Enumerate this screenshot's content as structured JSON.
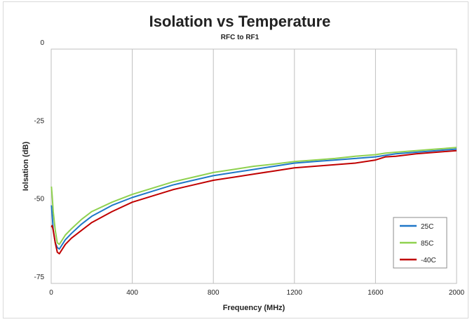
{
  "chart_data": {
    "type": "line",
    "title": "Isolation vs Temperature",
    "subtitle": "RFC to RF1",
    "xlabel": "Frequency (MHz)",
    "ylabel": "Iolsation (dB)",
    "xlim": [
      0,
      2000
    ],
    "ylim": [
      -75,
      0
    ],
    "xticks": [
      0,
      400,
      800,
      1200,
      1600,
      2000
    ],
    "yticks": [
      0,
      -25,
      -50,
      -75
    ],
    "grid": "vertical",
    "legend_position": "bottom-right",
    "series": [
      {
        "name": "25C",
        "color": "#1f77c8",
        "x": [
          1,
          5,
          10,
          20,
          30,
          40,
          50,
          70,
          100,
          150,
          200,
          300,
          400,
          500,
          600,
          700,
          800,
          900,
          1000,
          1100,
          1200,
          1300,
          1400,
          1500,
          1600,
          1650,
          1700,
          1800,
          1900,
          2000
        ],
        "y": [
          -50,
          -53,
          -58,
          -62,
          -63.5,
          -64,
          -63,
          -61,
          -59,
          -56,
          -53.5,
          -50,
          -47.5,
          -45.5,
          -43.5,
          -42,
          -40.5,
          -39.5,
          -38.5,
          -37.5,
          -36.5,
          -36,
          -35.5,
          -35,
          -34.5,
          -34,
          -33.5,
          -33,
          -32.5,
          -32
        ]
      },
      {
        "name": "85C",
        "color": "#8fd14f",
        "x": [
          1,
          5,
          10,
          20,
          30,
          40,
          50,
          70,
          100,
          150,
          200,
          300,
          400,
          500,
          600,
          700,
          800,
          900,
          1000,
          1100,
          1200,
          1300,
          1400,
          1500,
          1600,
          1650,
          1700,
          1800,
          1900,
          2000
        ],
        "y": [
          -44,
          -47,
          -52,
          -58,
          -62,
          -62.5,
          -61.5,
          -59.5,
          -57.5,
          -54.5,
          -52,
          -49,
          -46.5,
          -44.5,
          -42.5,
          -41,
          -39.5,
          -38.5,
          -37.5,
          -36.8,
          -36,
          -35.5,
          -35,
          -34.3,
          -33.8,
          -33.3,
          -33,
          -32.5,
          -32,
          -31.5
        ]
      },
      {
        "name": "-40C",
        "color": "#c00000",
        "x": [
          1,
          5,
          10,
          20,
          30,
          40,
          50,
          70,
          100,
          150,
          200,
          300,
          400,
          500,
          600,
          700,
          800,
          900,
          1000,
          1100,
          1200,
          1300,
          1400,
          1500,
          1600,
          1650,
          1700,
          1800,
          1900,
          2000
        ],
        "y": [
          -57,
          -56.5,
          -58,
          -62,
          -65,
          -65.5,
          -64.5,
          -62.5,
          -60.5,
          -58,
          -55.5,
          -52,
          -49,
          -47,
          -45,
          -43.5,
          -42,
          -41,
          -40,
          -39,
          -38,
          -37.5,
          -37,
          -36.5,
          -35.5,
          -34.5,
          -34.3,
          -33.5,
          -33,
          -32.5
        ]
      }
    ]
  }
}
